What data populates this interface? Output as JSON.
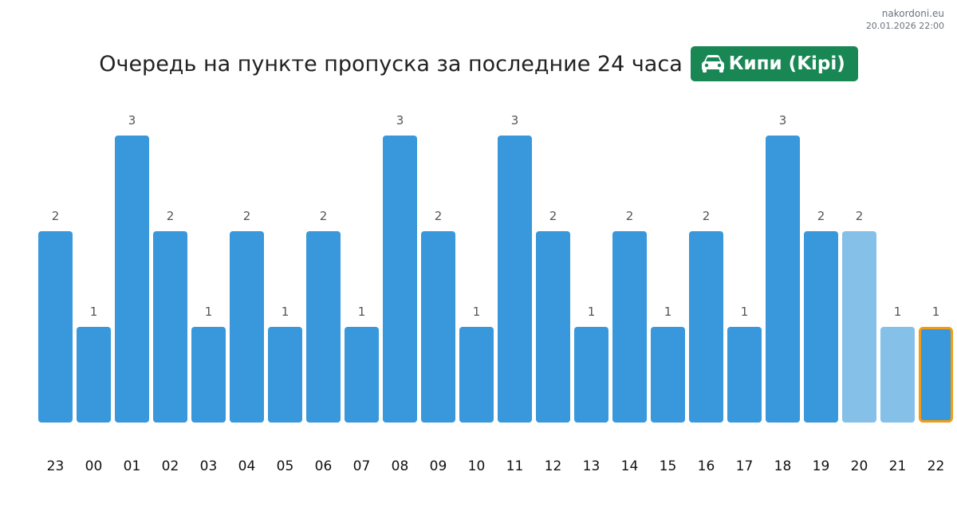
{
  "site": {
    "name": "nakordoni.eu",
    "timestamp": "20.01.2026 22:00"
  },
  "header": {
    "title": "Очередь на пункте пропуска за последние 24 часа",
    "badge_icon": "car-icon",
    "badge_label": "Кипи (Kipi)",
    "badge_color": "#198754"
  },
  "chart_data": {
    "type": "bar",
    "categories": [
      "23",
      "00",
      "01",
      "02",
      "03",
      "04",
      "05",
      "06",
      "07",
      "08",
      "09",
      "10",
      "11",
      "12",
      "13",
      "14",
      "15",
      "16",
      "17",
      "18",
      "19",
      "20",
      "21",
      "22"
    ],
    "values": [
      2,
      1,
      3,
      2,
      1,
      2,
      1,
      2,
      1,
      3,
      2,
      1,
      3,
      2,
      1,
      2,
      1,
      2,
      1,
      3,
      2,
      2,
      1,
      1
    ],
    "ylim": [
      0,
      3
    ],
    "grid": false,
    "colors": {
      "bar": "#3898db",
      "bar_light": "#85c0e9",
      "highlight_border": "#f39c12"
    },
    "light_categories": [
      "20",
      "21"
    ],
    "highlight_category": "22"
  }
}
